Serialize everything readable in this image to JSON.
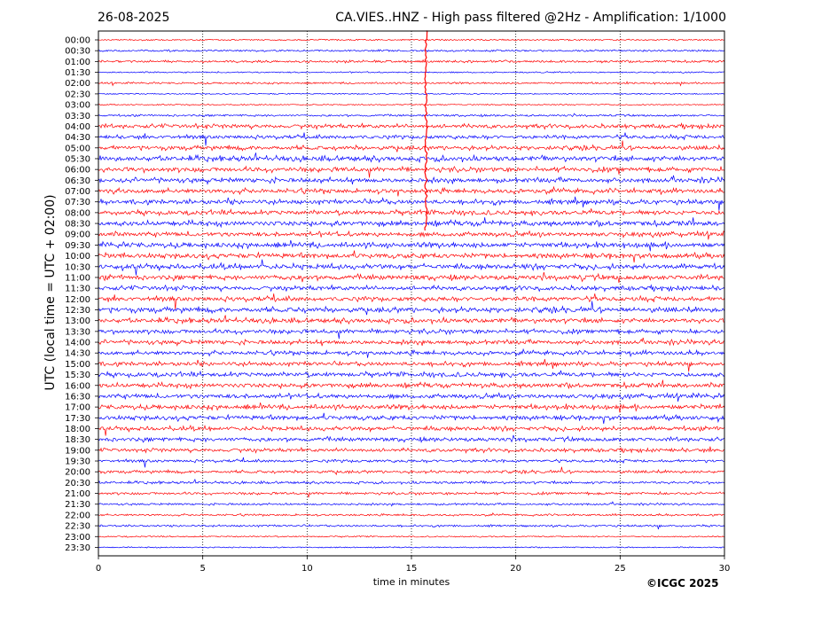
{
  "header": {
    "date": "26-08-2025",
    "title": "CA.VIES..HNZ - High pass filtered @2Hz - Amplification: 1/1000"
  },
  "footer": {
    "copyright": "©ICGC 2025"
  },
  "colors": {
    "red": "#ff0000",
    "blue": "#0000ff",
    "grid": "#000000",
    "background": "#ffffff"
  },
  "chart_data": {
    "type": "line",
    "title": "CA.VIES..HNZ - High pass filtered @2Hz - Amplification: 1/1000",
    "xlabel": "time in minutes",
    "ylabel": "UTC (local time = UTC + 02:00)",
    "xlim": [
      0,
      30
    ],
    "x_ticks": [
      "0",
      "5",
      "10",
      "15",
      "20",
      "25",
      "30"
    ],
    "x_tick_values": [
      0,
      5,
      10,
      15,
      20,
      25,
      30
    ],
    "grid": "vertical dotted lines at each 5 minutes",
    "trace_colors_alternate": [
      "red",
      "blue"
    ],
    "trace_labels": [
      "00:00",
      "00:30",
      "01:00",
      "01:30",
      "02:00",
      "02:30",
      "03:00",
      "03:30",
      "04:00",
      "04:30",
      "05:00",
      "05:30",
      "06:00",
      "06:30",
      "07:00",
      "07:30",
      "08:00",
      "08:30",
      "09:00",
      "09:30",
      "10:00",
      "10:30",
      "11:00",
      "11:30",
      "12:00",
      "12:30",
      "13:00",
      "13:30",
      "14:00",
      "14:30",
      "15:00",
      "15:30",
      "16:00",
      "16:30",
      "17:00",
      "17:30",
      "18:00",
      "18:30",
      "19:00",
      "19:30",
      "20:00",
      "20:30",
      "21:00",
      "21:30",
      "22:00",
      "22:30",
      "23:00",
      "23:30"
    ],
    "relative_activity": [
      0.15,
      0.25,
      0.35,
      0.15,
      0.25,
      0.1,
      0.1,
      0.3,
      0.8,
      0.7,
      0.8,
      1.0,
      0.9,
      0.9,
      0.9,
      0.9,
      0.9,
      1.0,
      0.9,
      1.0,
      1.0,
      1.0,
      1.0,
      0.9,
      0.9,
      1.0,
      0.9,
      0.8,
      0.8,
      0.8,
      0.8,
      0.9,
      0.9,
      0.9,
      0.9,
      0.9,
      0.8,
      0.8,
      0.7,
      0.5,
      0.5,
      0.4,
      0.4,
      0.3,
      0.3,
      0.3,
      0.15,
      0.1
    ],
    "events": [
      {
        "trace": "02:00",
        "minute": 15.7,
        "description": "large spike"
      }
    ]
  }
}
